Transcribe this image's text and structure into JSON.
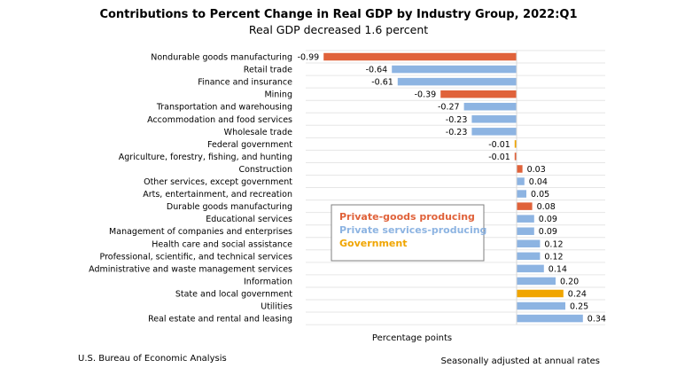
{
  "chart_data": {
    "type": "bar",
    "orientation": "horizontal",
    "title": "Contributions to Percent Change in Real GDP by Industry Group, 2022:Q1",
    "subtitle": "Real GDP decreased 1.6 percent",
    "xlabel": "Percentage points",
    "source": "U.S. Bureau of Economic Analysis",
    "note": "Seasonally adjusted at annual rates",
    "xlim": [
      -1.0,
      0.45
    ],
    "grid": "horizontal",
    "legend_placement": "center",
    "groups": [
      {
        "key": "goods",
        "name": "Private-goods producing",
        "color": "#E0623A"
      },
      {
        "key": "services",
        "name": "Private services-producing",
        "color": "#8DB4E2"
      },
      {
        "key": "gov",
        "name": "Government",
        "color": "#F0A500"
      }
    ],
    "categories": [
      "Nondurable goods manufacturing",
      "Retail trade",
      "Finance and insurance",
      "Mining",
      "Transportation and warehousing",
      "Accommodation and food services",
      "Wholesale trade",
      "Federal government",
      "Agriculture, forestry, fishing, and hunting",
      "Construction",
      "Other services, except government",
      "Arts, entertainment, and recreation",
      "Durable goods manufacturing",
      "Educational services",
      "Management of companies and enterprises",
      "Health care and social assistance",
      "Professional, scientific, and technical services",
      "Administrative and waste management services",
      "Information",
      "State and local government",
      "Utilities",
      "Real estate and rental and leasing"
    ],
    "values": [
      -0.99,
      -0.64,
      -0.61,
      -0.39,
      -0.27,
      -0.23,
      -0.23,
      -0.01,
      -0.01,
      0.03,
      0.04,
      0.05,
      0.08,
      0.09,
      0.09,
      0.12,
      0.12,
      0.14,
      0.2,
      0.24,
      0.25,
      0.34
    ],
    "labels": [
      "-0.99",
      "-0.64",
      "-0.61",
      "-0.39",
      "-0.27",
      "-0.23",
      "-0.23",
      "-0.01",
      "-0.01",
      "0.03",
      "0.04",
      "0.05",
      "0.08",
      "0.09",
      "0.09",
      "0.12",
      "0.12",
      "0.14",
      "0.20",
      "0.24",
      "0.25",
      "0.34"
    ],
    "group_of": [
      "goods",
      "services",
      "services",
      "goods",
      "services",
      "services",
      "services",
      "gov",
      "goods",
      "goods",
      "services",
      "services",
      "goods",
      "services",
      "services",
      "services",
      "services",
      "services",
      "services",
      "gov",
      "services",
      "services"
    ]
  }
}
